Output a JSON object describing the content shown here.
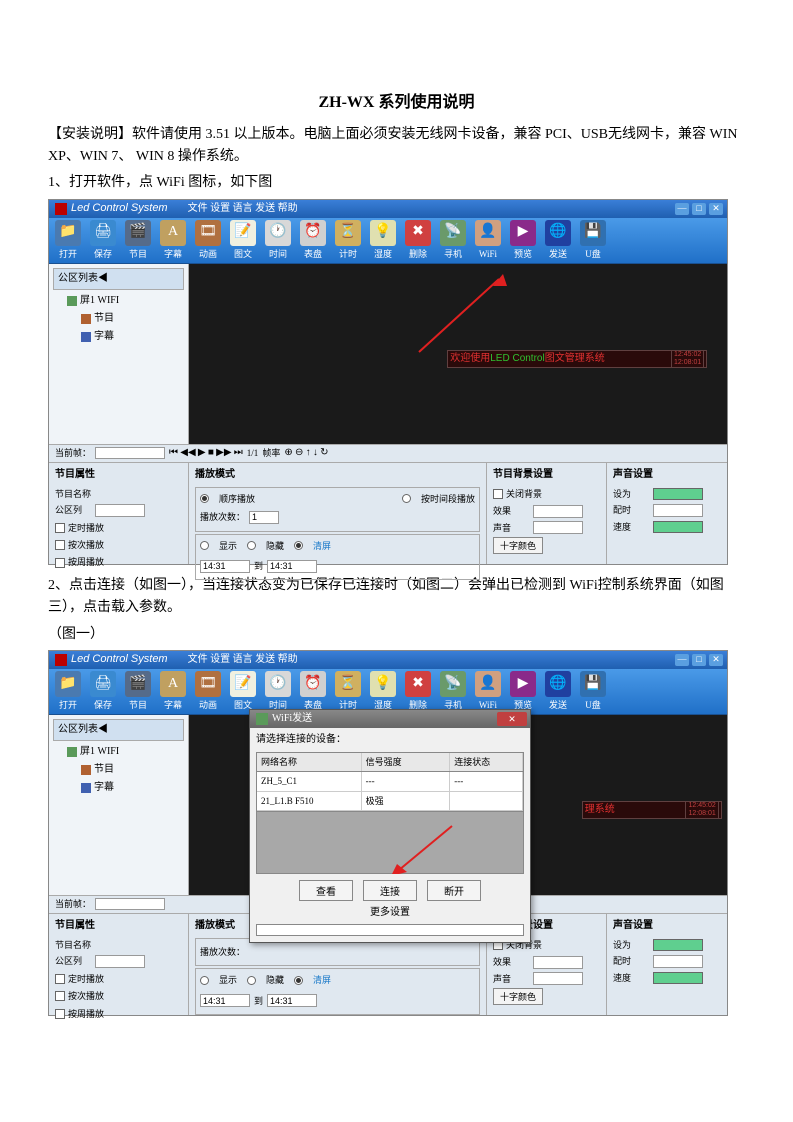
{
  "doc": {
    "title": "ZH-WX 系列使用说明",
    "para1": "【安装说明】软件请使用 3.51 以上版本。电脑上面必须安装无线网卡设备，兼容 PCI、USB无线网卡，兼容 WIN XP、WIN 7、  WIN 8 操作系统。",
    "step1": "1、打开软件，点 WiFi 图标，如下图",
    "step2": "2、点击连接（如图一），当连接状态变为已保存已连接时（如图二）会弹出已检测到 WiFi控制系统界面（如图三），点击载入参数。",
    "fig1_caption": "（图一）"
  },
  "app": {
    "title": "Led Control System",
    "menu_items": [
      "文件",
      "设置",
      "语言",
      "发送",
      "帮助"
    ],
    "win_buttons": [
      "—",
      "□",
      "✕"
    ]
  },
  "toolbar": [
    {
      "label": "打开",
      "bg": "#4a7ab0",
      "glyph": "📁"
    },
    {
      "label": "保存",
      "bg": "#3a8ad0",
      "glyph": "🖨"
    },
    {
      "label": "节目",
      "bg": "#556b8a",
      "glyph": "🎬"
    },
    {
      "label": "字幕",
      "bg": "#c0a060",
      "glyph": "A"
    },
    {
      "label": "动画",
      "bg": "#b07040",
      "glyph": "🎞"
    },
    {
      "label": "图文",
      "bg": "#f0f0e0",
      "glyph": "📝"
    },
    {
      "label": "时间",
      "bg": "#d8d8d8",
      "glyph": "🕐"
    },
    {
      "label": "表盘",
      "bg": "#d0d0d0",
      "glyph": "⏰"
    },
    {
      "label": "计时",
      "bg": "#d0b060",
      "glyph": "⏳"
    },
    {
      "label": "湿度",
      "bg": "#e0e0b0",
      "glyph": "💡"
    },
    {
      "label": "删除",
      "bg": "#d04040",
      "glyph": "✖"
    },
    {
      "label": "寻机",
      "bg": "#6a9a6a",
      "glyph": "📡"
    },
    {
      "label": "WiFi",
      "bg": "#d0a080",
      "glyph": "👤"
    },
    {
      "label": "预览",
      "bg": "#8a2a8a",
      "glyph": "▶"
    },
    {
      "label": "发送",
      "bg": "#2040a0",
      "glyph": "🌐"
    },
    {
      "label": "U盘",
      "bg": "#3070b0",
      "glyph": "💾"
    }
  ],
  "tree": {
    "header": "公区列表◀",
    "root": "屏1 WIFI",
    "items": [
      "节目",
      "字幕"
    ]
  },
  "led": {
    "prefix": "欢迎使用",
    "mid": "LED Control",
    "suffix": "图文管理系统",
    "time1": "12:45:02",
    "time2": "12:08:01"
  },
  "playback": {
    "label1": "当前帧：",
    "controls": [
      "⏮",
      "◀◀",
      "▶",
      "■",
      "▶▶",
      "⏭"
    ],
    "pos": "1/1",
    "label2": "帧率",
    "extras": [
      "⊕",
      "⊖",
      "↑",
      "↓",
      "↻"
    ]
  },
  "props": {
    "panel1_title": "节目属性",
    "name_label": "节目名称",
    "name_value": "",
    "area_label": "公区列",
    "chk1": "定时播放",
    "chk2": "按次播放",
    "chk3": "按周播放",
    "panel2_title": "播放模式",
    "fs_mode": "播放模式",
    "radio1": "顺序播放",
    "radio_mid": "",
    "radio2": "按时间段播放",
    "mode_label": "播放次数：",
    "mode_value": "1",
    "fs_play": "",
    "r_show": "显示",
    "r_hide": "隐藏",
    "r_loop": "清屏",
    "time_from": "14:31",
    "time_to_label": "到",
    "time_to": "14:31",
    "panel3_title": "节目背景设置",
    "bg_chk": "关闭背景",
    "eff_label": "效果",
    "spd_label": "声音",
    "btn_clr": "十字颜色",
    "panel4_title": "声音设置",
    "p4_l1": "设为",
    "p4_l2": "配时",
    "p4_l3": "速度"
  },
  "dialog": {
    "title": "WiFi发送",
    "subtitle": "请选择连接的设备：",
    "headers": [
      "网络名称",
      "信号强度",
      "连接状态"
    ],
    "rows": [
      [
        "ZH_5_C1",
        "---",
        "---"
      ],
      [
        "21_L1.B F510",
        "极强",
        ""
      ]
    ],
    "btn_refresh": "查看",
    "btn_connect": "连接",
    "btn_exit": "断开",
    "footer": "更多设置"
  }
}
